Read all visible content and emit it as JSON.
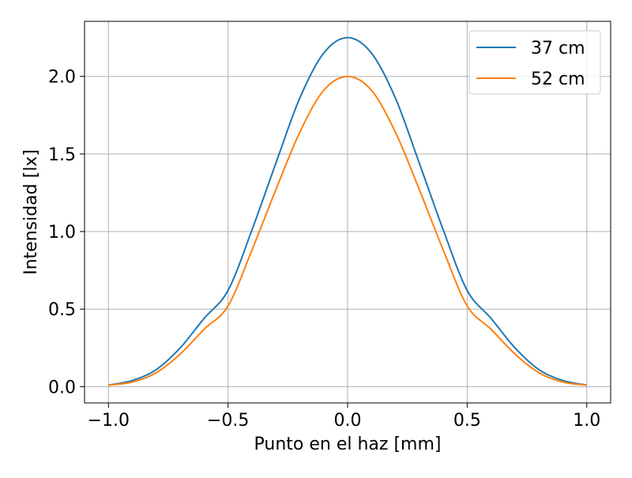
{
  "chart_data": {
    "type": "line",
    "title": "",
    "xlabel": "Punto en el haz [mm]",
    "ylabel": "Intensidad [lx]",
    "xlim": [
      -1.1,
      1.1
    ],
    "ylim": [
      -0.105,
      2.355
    ],
    "xticks": [
      -1.0,
      -0.5,
      0.0,
      0.5,
      1.0
    ],
    "xtick_labels": [
      "−1.0",
      "−0.5",
      "0.0",
      "0.5",
      "1.0"
    ],
    "yticks": [
      0.0,
      0.5,
      1.0,
      1.5,
      2.0
    ],
    "ytick_labels": [
      "0.0",
      "0.5",
      "1.0",
      "1.5",
      "2.0"
    ],
    "grid": true,
    "legend_position": "top-right",
    "x": [
      -1.0,
      -0.9,
      -0.8,
      -0.7,
      -0.6,
      -0.5,
      -0.4,
      -0.3,
      -0.2,
      -0.1,
      0.0,
      0.1,
      0.2,
      0.3,
      0.4,
      0.5,
      0.6,
      0.7,
      0.8,
      0.9,
      1.0
    ],
    "series": [
      {
        "name": "37 cm",
        "color": "#1f77b4",
        "values": [
          0.01,
          0.04,
          0.11,
          0.25,
          0.44,
          0.62,
          1.01,
          1.44,
          1.86,
          2.15,
          2.25,
          2.15,
          1.86,
          1.44,
          1.01,
          0.62,
          0.44,
          0.25,
          0.11,
          0.04,
          0.01
        ]
      },
      {
        "name": "52 cm",
        "color": "#ff7f0e",
        "values": [
          0.01,
          0.03,
          0.09,
          0.21,
          0.37,
          0.52,
          0.88,
          1.27,
          1.64,
          1.91,
          2.0,
          1.91,
          1.64,
          1.27,
          0.88,
          0.52,
          0.37,
          0.21,
          0.09,
          0.03,
          0.01
        ]
      }
    ]
  }
}
